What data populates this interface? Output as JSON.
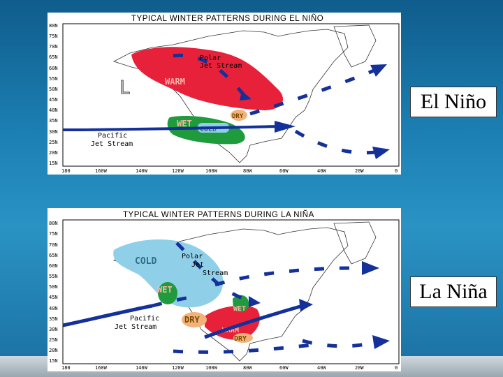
{
  "top_map": {
    "title": "TYPICAL WINTER PATTERNS DURING EL NIÑO",
    "lat_ticks": [
      "80N",
      "75N",
      "70N",
      "65N",
      "60N",
      "55N",
      "50N",
      "45N",
      "40N",
      "35N",
      "30N",
      "25N",
      "20N",
      "15N"
    ],
    "lon_ticks": [
      "180",
      "160W",
      "140W",
      "120W",
      "100W",
      "80W",
      "60W",
      "40W",
      "20W",
      "0"
    ],
    "low_symbol": "L",
    "regions": {
      "warm": "WARM",
      "wet": "WET",
      "cold": "COLD",
      "dry": "DRY"
    },
    "jet_labels": {
      "polar_line1": "Polar",
      "polar_line2": "Jet Stream",
      "pacific_line1": "Pacific",
      "pacific_line2": "Jet Stream"
    }
  },
  "bottom_map": {
    "title": "TYPICAL WINTER PATTERNS DURING LA NIÑA",
    "lat_ticks": [
      "80N",
      "75N",
      "70N",
      "65N",
      "60N",
      "55N",
      "50N",
      "45N",
      "40N",
      "35N",
      "30N",
      "25N",
      "20N",
      "15N"
    ],
    "lon_ticks": [
      "180",
      "160W",
      "140W",
      "120W",
      "100W",
      "80W",
      "60W",
      "40W",
      "20W",
      "0"
    ],
    "regions": {
      "cold": "COLD",
      "wet_west": "WET",
      "wet_east": "WET",
      "dry_south": "DRY",
      "warm": "WARM",
      "dry_east": "DRY"
    },
    "jet_labels": {
      "polar_line1": "Polar",
      "polar_line2": "Jet",
      "polar_line3": "Stream",
      "pacific_line1": "Pacific",
      "pacific_line2": "Jet Stream"
    }
  },
  "side_labels": {
    "el_nino": "El Niño",
    "la_nina": "La Niña"
  },
  "colors": {
    "warm": "#e8213a",
    "wet": "#1f9a3c",
    "cold": "#8fd0e8",
    "dry": "#f2b27a",
    "jet": "#14309a",
    "background": "#1c7fb3"
  }
}
